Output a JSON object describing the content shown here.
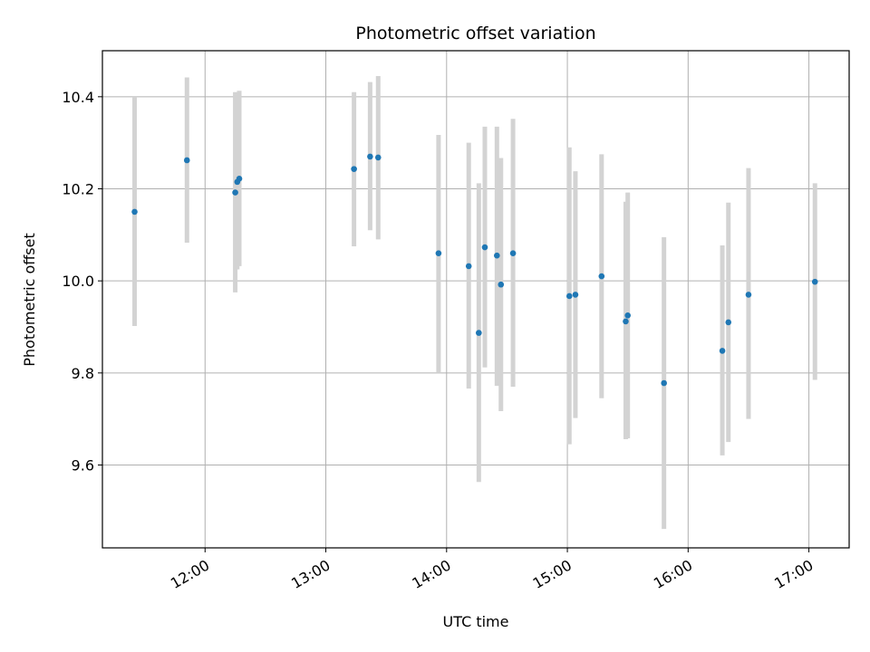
{
  "chart_data": {
    "type": "scatter",
    "title": "Photometric offset variation",
    "xlabel": "UTC time",
    "ylabel": "Photometric offset",
    "x_axis_type": "time",
    "xlim": [
      "11:09",
      "17:20"
    ],
    "ylim": [
      9.42,
      10.5
    ],
    "x_ticks": [
      "12:00",
      "13:00",
      "14:00",
      "15:00",
      "16:00",
      "17:00"
    ],
    "y_ticks": [
      "9.6",
      "9.8",
      "10.0",
      "10.2",
      "10.4"
    ],
    "grid": true,
    "marker_color": "#1f77b4",
    "errorbar_color": "#d3d3d3",
    "points": [
      {
        "time": "11:25",
        "value": 10.15,
        "low": 9.902,
        "high": 10.4
      },
      {
        "time": "11:51",
        "value": 10.262,
        "low": 10.083,
        "high": 10.442
      },
      {
        "time": "12:15",
        "value": 10.192,
        "low": 9.975,
        "high": 10.41
      },
      {
        "time": "12:16",
        "value": 10.215,
        "low": 10.025,
        "high": 10.405
      },
      {
        "time": "12:17",
        "value": 10.222,
        "low": 10.032,
        "high": 10.413
      },
      {
        "time": "13:14",
        "value": 10.243,
        "low": 10.075,
        "high": 10.41
      },
      {
        "time": "13:22",
        "value": 10.27,
        "low": 10.11,
        "high": 10.432
      },
      {
        "time": "13:26",
        "value": 10.268,
        "low": 10.09,
        "high": 10.445
      },
      {
        "time": "13:56",
        "value": 10.06,
        "low": 9.8,
        "high": 10.317
      },
      {
        "time": "14:11",
        "value": 10.032,
        "low": 9.766,
        "high": 10.3
      },
      {
        "time": "14:16",
        "value": 9.887,
        "low": 9.563,
        "high": 10.212
      },
      {
        "time": "14:19",
        "value": 10.073,
        "low": 9.812,
        "high": 10.335
      },
      {
        "time": "14:25",
        "value": 10.055,
        "low": 9.772,
        "high": 10.335
      },
      {
        "time": "14:27",
        "value": 9.992,
        "low": 9.717,
        "high": 10.267
      },
      {
        "time": "14:33",
        "value": 10.06,
        "low": 9.77,
        "high": 10.352
      },
      {
        "time": "15:01",
        "value": 9.967,
        "low": 9.645,
        "high": 10.29
      },
      {
        "time": "15:04",
        "value": 9.97,
        "low": 9.702,
        "high": 10.238
      },
      {
        "time": "15:17",
        "value": 10.01,
        "low": 9.745,
        "high": 10.275
      },
      {
        "time": "15:29",
        "value": 9.912,
        "low": 9.656,
        "high": 10.172
      },
      {
        "time": "15:30",
        "value": 9.925,
        "low": 9.658,
        "high": 10.192
      },
      {
        "time": "15:48",
        "value": 9.778,
        "low": 9.461,
        "high": 10.095
      },
      {
        "time": "16:17",
        "value": 9.848,
        "low": 9.621,
        "high": 10.077
      },
      {
        "time": "16:20",
        "value": 9.91,
        "low": 9.65,
        "high": 10.17
      },
      {
        "time": "16:30",
        "value": 9.97,
        "low": 9.7,
        "high": 10.245
      },
      {
        "time": "17:03",
        "value": 9.998,
        "low": 9.785,
        "high": 10.212
      }
    ]
  }
}
